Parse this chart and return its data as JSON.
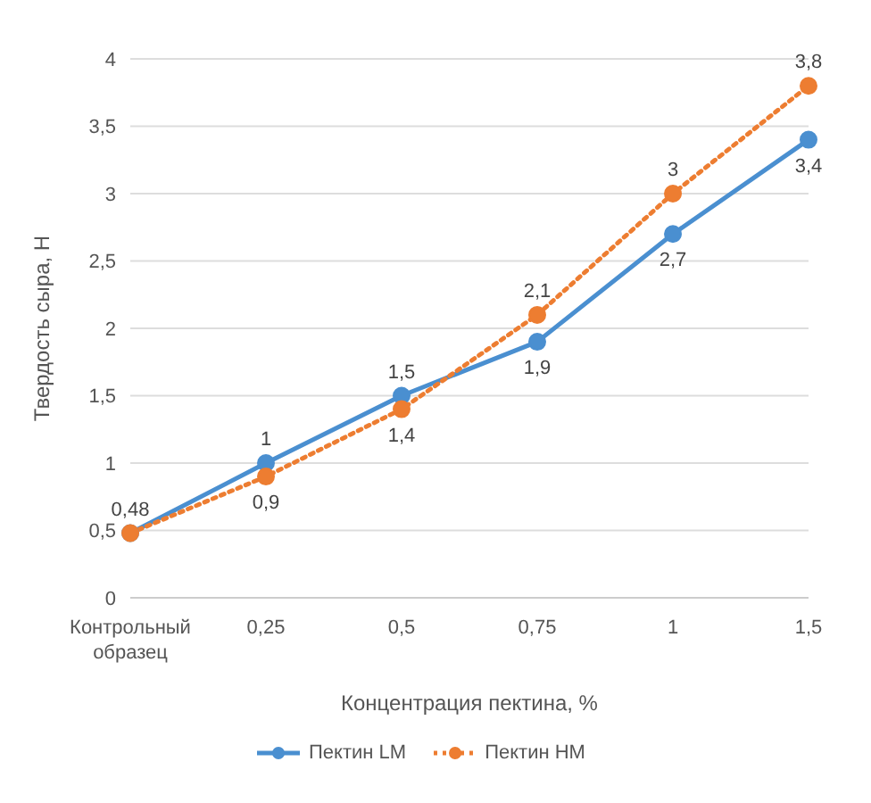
{
  "chart_data": {
    "type": "line",
    "xlabel": "Концентрация пектина, %",
    "ylabel": "Твердость сыра, Н",
    "categories": [
      "Контрольный образец",
      "0,25",
      "0,5",
      "0,75",
      "1",
      "1,5"
    ],
    "series": [
      {
        "name": "Пектин LM",
        "color": "#4a8fd0",
        "line_style": "solid",
        "values": [
          0.48,
          1,
          1.5,
          1.9,
          2.7,
          3.4
        ],
        "value_labels": [
          "0,48",
          "1",
          "1,5",
          "1,9",
          "2,7",
          "3,4"
        ]
      },
      {
        "name": "Пектин HM",
        "color": "#ed7d31",
        "line_style": "dotted",
        "values": [
          0.48,
          0.9,
          1.4,
          2.1,
          3,
          3.8
        ],
        "value_labels": [
          null,
          "0,9",
          "1,4",
          "2,1",
          "3",
          "3,8"
        ]
      }
    ],
    "ylim": [
      0,
      4
    ],
    "yticks": [
      0,
      {
        "value": 0.5,
        "label": "0,5"
      },
      1,
      {
        "value": 1.5,
        "label": "1,5"
      },
      2,
      {
        "value": 2.5,
        "label": "2,5"
      },
      3,
      {
        "value": 3.5,
        "label": "3,5"
      },
      4
    ],
    "grid": "y",
    "legend": "bottom",
    "marker": "circle"
  }
}
